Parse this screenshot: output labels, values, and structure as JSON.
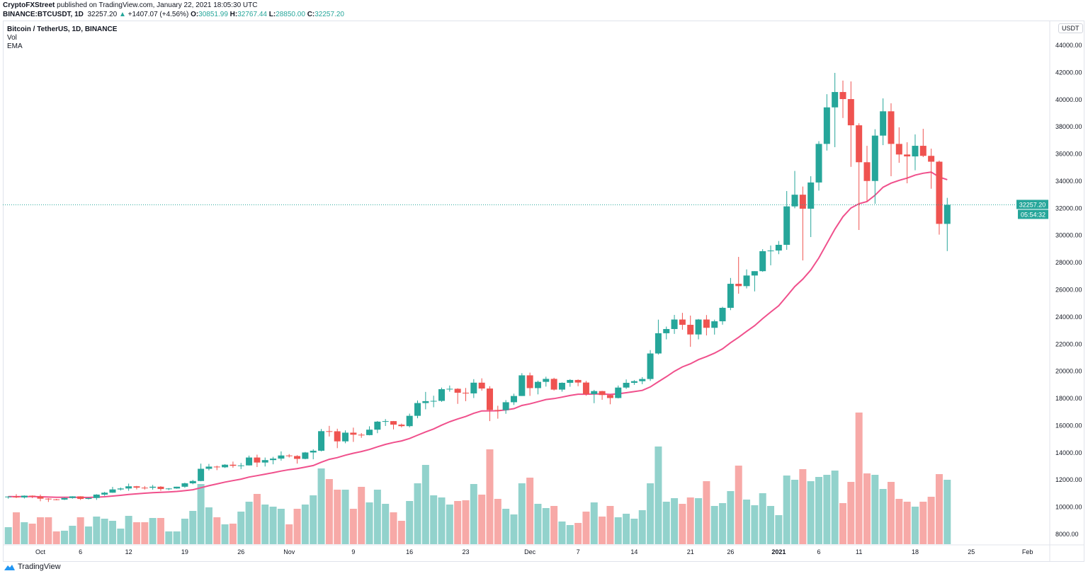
{
  "header": {
    "publisher": "CryptoFXStreet",
    "published_text": "published on TradingView.com, January 22, 2021 18:05:30 UTC",
    "symbol": "BINANCE:BTCUSDT, 1D",
    "last": "32257.20",
    "change": "+1407.07 (+4.56%)",
    "o_label": "O:",
    "o": "30851.99",
    "h_label": "H:",
    "h": "32767.44",
    "l_label": "L:",
    "l": "28850.00",
    "c_label": "C:",
    "c": "32257.20"
  },
  "legend": {
    "title": "Bitcoin / TetherUS, 1D, BINANCE",
    "vol": "Vol",
    "ema": "EMA"
  },
  "footer": {
    "brand": "TradingView"
  },
  "colors": {
    "up": "#26a69a",
    "down": "#ef5350",
    "ema": "#f0508c",
    "grid": "#e0e3eb"
  },
  "chart_data": {
    "type": "candlestick",
    "currency": "USDT",
    "ylim": [
      7000,
      45500
    ],
    "y_ticks": [
      "8000.00",
      "10000.00",
      "12000.00",
      "14000.00",
      "16000.00",
      "18000.00",
      "20000.00",
      "22000.00",
      "24000.00",
      "26000.00",
      "28000.00",
      "30000.00",
      "32000.00",
      "34000.00",
      "36000.00",
      "38000.00",
      "40000.00",
      "42000.00",
      "44000.00"
    ],
    "x_ticks": [
      {
        "label": "Oct",
        "date": "2020-10-01"
      },
      {
        "label": "6",
        "date": "2020-10-06"
      },
      {
        "label": "12",
        "date": "2020-10-12"
      },
      {
        "label": "19",
        "date": "2020-10-19"
      },
      {
        "label": "26",
        "date": "2020-10-26"
      },
      {
        "label": "Nov",
        "date": "2020-11-01"
      },
      {
        "label": "9",
        "date": "2020-11-09"
      },
      {
        "label": "16",
        "date": "2020-11-16"
      },
      {
        "label": "23",
        "date": "2020-11-23"
      },
      {
        "label": "Dec",
        "date": "2020-12-01"
      },
      {
        "label": "7",
        "date": "2020-12-07"
      },
      {
        "label": "14",
        "date": "2020-12-14"
      },
      {
        "label": "21",
        "date": "2020-12-21"
      },
      {
        "label": "26",
        "date": "2020-12-26"
      },
      {
        "label": "2021",
        "date": "2021-01-01"
      },
      {
        "label": "6",
        "date": "2021-01-06"
      },
      {
        "label": "11",
        "date": "2021-01-11"
      },
      {
        "label": "18",
        "date": "2021-01-18"
      },
      {
        "label": "25",
        "date": "2021-01-25"
      },
      {
        "label": "Feb",
        "date": "2021-02-01"
      }
    ],
    "last_price_label": "32257.20",
    "countdown_label": "05:54:32",
    "start_date": "2020-09-27",
    "candles_columns": [
      "open",
      "high",
      "low",
      "close"
    ],
    "candles": [
      [
        10735,
        10800,
        10620,
        10775
      ],
      [
        10775,
        10950,
        10660,
        10710
      ],
      [
        10710,
        10860,
        10630,
        10840
      ],
      [
        10840,
        10860,
        10660,
        10780
      ],
      [
        10780,
        10920,
        10430,
        10620
      ],
      [
        10620,
        10660,
        10380,
        10570
      ],
      [
        10570,
        10600,
        10500,
        10550
      ],
      [
        10550,
        10700,
        10520,
        10670
      ],
      [
        10670,
        10800,
        10620,
        10790
      ],
      [
        10790,
        10800,
        10530,
        10600
      ],
      [
        10600,
        10690,
        10560,
        10670
      ],
      [
        10670,
        10950,
        10530,
        10920
      ],
      [
        10920,
        11120,
        10830,
        11060
      ],
      [
        11060,
        11490,
        11050,
        11300
      ],
      [
        11300,
        11440,
        11220,
        11370
      ],
      [
        11370,
        11730,
        11200,
        11530
      ],
      [
        11530,
        11560,
        11300,
        11430
      ],
      [
        11430,
        11550,
        11290,
        11425
      ],
      [
        11425,
        11630,
        11280,
        11500
      ],
      [
        11500,
        11540,
        11200,
        11330
      ],
      [
        11330,
        11400,
        11250,
        11370
      ],
      [
        11370,
        11500,
        11350,
        11500
      ],
      [
        11500,
        11800,
        11420,
        11750
      ],
      [
        11750,
        12000,
        11680,
        11920
      ],
      [
        11920,
        13200,
        11900,
        12820
      ],
      [
        12820,
        13180,
        12700,
        12980
      ],
      [
        12980,
        13050,
        12720,
        12930
      ],
      [
        12930,
        13160,
        12880,
        13120
      ],
      [
        13120,
        13350,
        12900,
        13040
      ],
      [
        13040,
        13250,
        12800,
        13070
      ],
      [
        13070,
        13790,
        13060,
        13650
      ],
      [
        13650,
        13860,
        12950,
        13280
      ],
      [
        13280,
        13650,
        12990,
        13460
      ],
      [
        13460,
        13700,
        13150,
        13570
      ],
      [
        13570,
        14100,
        13420,
        13800
      ],
      [
        13800,
        13900,
        13650,
        13760
      ],
      [
        13760,
        13820,
        13200,
        13550
      ],
      [
        13550,
        14060,
        13520,
        14020
      ],
      [
        14020,
        14260,
        13520,
        14150
      ],
      [
        14150,
        15750,
        14100,
        15590
      ],
      [
        15590,
        15980,
        15200,
        15580
      ],
      [
        15580,
        15770,
        14340,
        14840
      ],
      [
        14840,
        15650,
        14700,
        15480
      ],
      [
        15480,
        15850,
        14800,
        15330
      ],
      [
        15330,
        15450,
        15100,
        15300
      ],
      [
        15300,
        15950,
        15280,
        15700
      ],
      [
        15700,
        16340,
        15440,
        16290
      ],
      [
        16290,
        16480,
        15970,
        16330
      ],
      [
        16330,
        16340,
        15720,
        16070
      ],
      [
        16070,
        16150,
        15870,
        15960
      ],
      [
        15960,
        16880,
        15870,
        16720
      ],
      [
        16720,
        17850,
        16540,
        17660
      ],
      [
        17660,
        18480,
        17200,
        17800
      ],
      [
        17800,
        18200,
        17350,
        17820
      ],
      [
        17820,
        18800,
        17750,
        18680
      ],
      [
        18680,
        18950,
        18500,
        18710
      ],
      [
        18710,
        18750,
        17600,
        18420
      ],
      [
        18420,
        18770,
        17800,
        18370
      ],
      [
        18370,
        19420,
        18030,
        19160
      ],
      [
        19160,
        19480,
        18570,
        18730
      ],
      [
        18730,
        18900,
        16330,
        17150
      ],
      [
        17150,
        17460,
        16510,
        17140
      ],
      [
        17140,
        17880,
        16870,
        17720
      ],
      [
        17720,
        18350,
        17520,
        18180
      ],
      [
        18180,
        19860,
        18180,
        19700
      ],
      [
        19700,
        19900,
        18190,
        18760
      ],
      [
        18760,
        19310,
        18300,
        19220
      ],
      [
        19220,
        19600,
        18870,
        19440
      ],
      [
        19440,
        19520,
        18580,
        18650
      ],
      [
        18650,
        19180,
        18500,
        19150
      ],
      [
        19150,
        19420,
        18860,
        19360
      ],
      [
        19360,
        19400,
        18900,
        19170
      ],
      [
        19170,
        19290,
        18200,
        18320
      ],
      [
        18320,
        18630,
        17650,
        18540
      ],
      [
        18540,
        18560,
        17900,
        18250
      ],
      [
        18250,
        18290,
        17570,
        18030
      ],
      [
        18030,
        18950,
        18000,
        18800
      ],
      [
        18800,
        19400,
        18700,
        19150
      ],
      [
        19150,
        19350,
        19000,
        19270
      ],
      [
        19270,
        19570,
        19050,
        19430
      ],
      [
        19430,
        21560,
        19290,
        21310
      ],
      [
        21310,
        23800,
        21230,
        22800
      ],
      [
        22800,
        23290,
        22350,
        23110
      ],
      [
        23110,
        24150,
        22750,
        23810
      ],
      [
        23810,
        24300,
        23060,
        23420
      ],
      [
        23420,
        24100,
        21800,
        22710
      ],
      [
        22710,
        23850,
        22350,
        23810
      ],
      [
        23810,
        24140,
        22640,
        23200
      ],
      [
        23200,
        23800,
        22700,
        23680
      ],
      [
        23680,
        24750,
        23430,
        24670
      ],
      [
        24670,
        26870,
        24500,
        26440
      ],
      [
        26440,
        28420,
        25710,
        26270
      ],
      [
        26270,
        27500,
        26100,
        27050
      ],
      [
        27050,
        27370,
        25880,
        27370
      ],
      [
        27370,
        28990,
        27320,
        28840
      ],
      [
        28840,
        29260,
        27800,
        28890
      ],
      [
        28890,
        29590,
        28620,
        29310
      ],
      [
        29310,
        33270,
        28940,
        32140
      ],
      [
        32140,
        34750,
        32000,
        33000
      ],
      [
        33000,
        33600,
        28160,
        31970
      ],
      [
        31970,
        34360,
        29880,
        33900
      ],
      [
        33900,
        36940,
        33300,
        36740
      ],
      [
        36740,
        40400,
        36250,
        39430
      ],
      [
        39430,
        41970,
        36500,
        40560
      ],
      [
        40560,
        41400,
        38650,
        40040
      ],
      [
        40040,
        41340,
        35050,
        38110
      ],
      [
        38110,
        38260,
        30400,
        35390
      ],
      [
        35390,
        36600,
        32500,
        34010
      ],
      [
        34010,
        37820,
        32330,
        37350
      ],
      [
        37350,
        40090,
        36650,
        39140
      ],
      [
        39140,
        39730,
        34360,
        36740
      ],
      [
        36740,
        37960,
        35350,
        35960
      ],
      [
        35960,
        36860,
        33840,
        35820
      ],
      [
        35820,
        37440,
        34800,
        36600
      ],
      [
        36600,
        37850,
        35770,
        35860
      ],
      [
        35860,
        36390,
        33440,
        35430
      ],
      [
        35430,
        35510,
        30060,
        30852
      ],
      [
        30852,
        32767,
        28850,
        32257
      ]
    ],
    "volume_relative": [
      24,
      45,
      31,
      29,
      38,
      38,
      18,
      19,
      26,
      38,
      25,
      39,
      36,
      33,
      22,
      40,
      31,
      31,
      37,
      37,
      18,
      18,
      36,
      47,
      85,
      52,
      38,
      28,
      29,
      46,
      60,
      71,
      56,
      53,
      50,
      28,
      50,
      56,
      69,
      107,
      92,
      77,
      77,
      50,
      81,
      59,
      77,
      57,
      45,
      33,
      61,
      86,
      112,
      69,
      66,
      56,
      61,
      62,
      85,
      70,
      134,
      64,
      50,
      42,
      86,
      94,
      57,
      51,
      54,
      32,
      27,
      30,
      46,
      59,
      39,
      54,
      38,
      43,
      36,
      48,
      86,
      138,
      60,
      65,
      57,
      66,
      65,
      89,
      54,
      58,
      75,
      111,
      63,
      55,
      72,
      54,
      41,
      97,
      91,
      106,
      89,
      95,
      98,
      104,
      58,
      88,
      186,
      100,
      98,
      78,
      88,
      64,
      60,
      53,
      60,
      67,
      99,
      91
    ],
    "series": [
      {
        "name": "EMA",
        "type": "line"
      },
      {
        "name": "Vol",
        "type": "bar"
      }
    ],
    "grid": false
  }
}
